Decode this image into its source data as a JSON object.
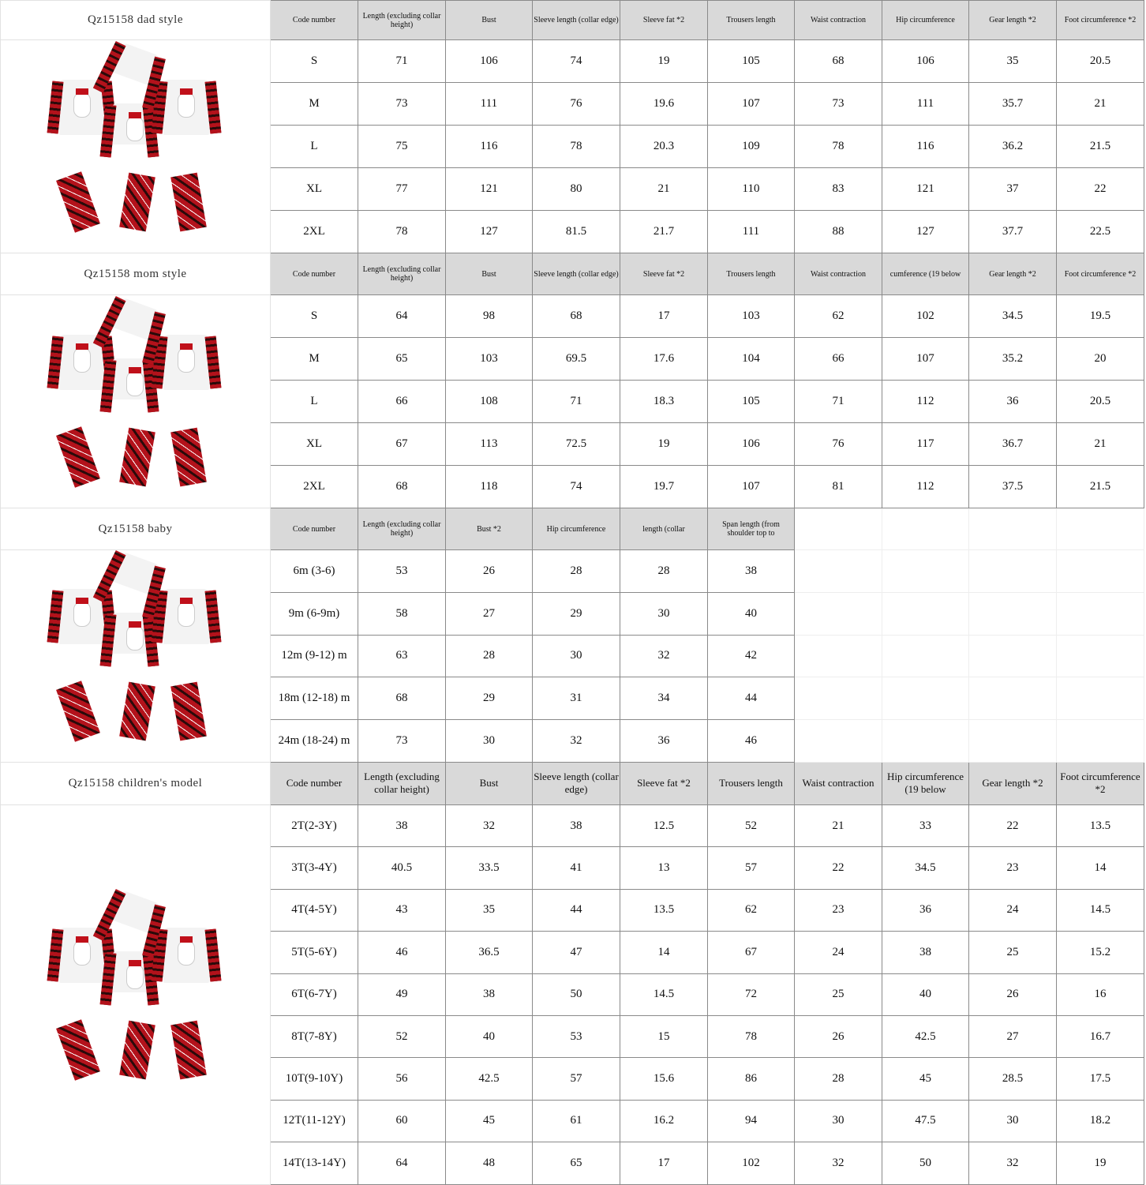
{
  "sections": [
    {
      "label": "Qz15158 dad style",
      "header_style": "small",
      "headers": [
        "Code number",
        "Length (excluding collar height)",
        "Bust",
        "Sleeve length (collar edge)",
        "Sleeve fat *2",
        "Trousers length",
        "Waist contraction",
        "Hip circumference",
        "Gear length *2",
        "Foot circumference *2"
      ],
      "rows": [
        [
          "S",
          "71",
          "106",
          "74",
          "19",
          "105",
          "68",
          "106",
          "35",
          "20.5"
        ],
        [
          "M",
          "73",
          "111",
          "76",
          "19.6",
          "107",
          "73",
          "111",
          "35.7",
          "21"
        ],
        [
          "L",
          "75",
          "116",
          "78",
          "20.3",
          "109",
          "78",
          "116",
          "36.2",
          "21.5"
        ],
        [
          "XL",
          "77",
          "121",
          "80",
          "21",
          "110",
          "83",
          "121",
          "37",
          "22"
        ],
        [
          "2XL",
          "78",
          "127",
          "81.5",
          "21.7",
          "111",
          "88",
          "127",
          "37.7",
          "22.5"
        ]
      ]
    },
    {
      "label": "Qz15158 mom style",
      "header_style": "small",
      "headers": [
        "Code number",
        "Length (excluding collar height)",
        "Bust",
        "Sleeve length (collar edge)",
        "Sleeve fat *2",
        "Trousers length",
        "Waist contraction",
        "cumference (19 below",
        "Gear length *2",
        "Foot circumference *2"
      ],
      "rows": [
        [
          "S",
          "64",
          "98",
          "68",
          "17",
          "103",
          "62",
          "102",
          "34.5",
          "19.5"
        ],
        [
          "M",
          "65",
          "103",
          "69.5",
          "17.6",
          "104",
          "66",
          "107",
          "35.2",
          "20"
        ],
        [
          "L",
          "66",
          "108",
          "71",
          "18.3",
          "105",
          "71",
          "112",
          "36",
          "20.5"
        ],
        [
          "XL",
          "67",
          "113",
          "72.5",
          "19",
          "106",
          "76",
          "117",
          "36.7",
          "21"
        ],
        [
          "2XL",
          "68",
          "118",
          "74",
          "19.7",
          "107",
          "81",
          "112",
          "37.5",
          "21.5"
        ]
      ]
    },
    {
      "label": "Qz15158 baby",
      "header_style": "small",
      "headers": [
        "Code number",
        "Length (excluding collar height)",
        "Bust *2",
        "Hip circumference",
        "length (collar",
        "Span length (from shoulder top to"
      ],
      "rows": [
        [
          "6m (3-6)",
          "53",
          "26",
          "28",
          "28",
          "38"
        ],
        [
          "9m (6-9m)",
          "58",
          "27",
          "29",
          "30",
          "40"
        ],
        [
          "12m (9-12) m",
          "63",
          "28",
          "30",
          "32",
          "42"
        ],
        [
          "18m (12-18) m",
          "68",
          "29",
          "31",
          "34",
          "44"
        ],
        [
          "24m (18-24) m",
          "73",
          "30",
          "32",
          "36",
          "46"
        ]
      ]
    },
    {
      "label": "Qz15158 children's model",
      "header_style": "big",
      "headers": [
        "Code number",
        "Length (excluding collar height)",
        "Bust",
        "Sleeve length (collar edge)",
        "Sleeve fat *2",
        "Trousers length",
        "Waist contraction",
        "Hip circumference (19 below",
        "Gear length *2",
        "Foot circumference *2"
      ],
      "rows": [
        [
          "2T(2-3Y)",
          "38",
          "32",
          "38",
          "12.5",
          "52",
          "21",
          "33",
          "22",
          "13.5"
        ],
        [
          "3T(3-4Y)",
          "40.5",
          "33.5",
          "41",
          "13",
          "57",
          "22",
          "34.5",
          "23",
          "14"
        ],
        [
          "4T(4-5Y)",
          "43",
          "35",
          "44",
          "13.5",
          "62",
          "23",
          "36",
          "24",
          "14.5"
        ],
        [
          "5T(5-6Y)",
          "46",
          "36.5",
          "47",
          "14",
          "67",
          "24",
          "38",
          "25",
          "15.2"
        ],
        [
          "6T(6-7Y)",
          "49",
          "38",
          "50",
          "14.5",
          "72",
          "25",
          "40",
          "26",
          "16"
        ],
        [
          "8T(7-8Y)",
          "52",
          "40",
          "53",
          "15",
          "78",
          "26",
          "42.5",
          "27",
          "16.7"
        ],
        [
          "10T(9-10Y)",
          "56",
          "42.5",
          "57",
          "15.6",
          "86",
          "28",
          "45",
          "28.5",
          "17.5"
        ],
        [
          "12T(11-12Y)",
          "60",
          "45",
          "61",
          "16.2",
          "94",
          "30",
          "47.5",
          "30",
          "18.2"
        ],
        [
          "14T(13-14Y)",
          "64",
          "48",
          "65",
          "17",
          "102",
          "32",
          "50",
          "32",
          "19"
        ]
      ]
    }
  ],
  "colors": {
    "header_bg": "#d9d9d9",
    "plaid_red": "#b3121b",
    "plaid_dark": "#2a0a0a"
  }
}
